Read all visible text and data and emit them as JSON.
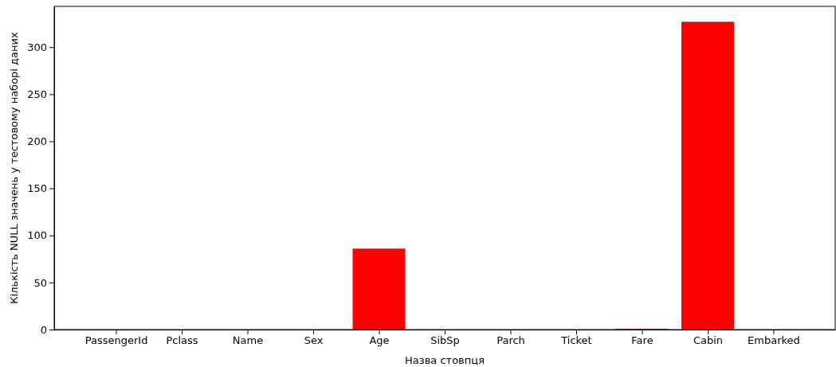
{
  "chart_data": {
    "type": "bar",
    "xlabel": "Назва стовпця",
    "ylabel": "Кількість NULL значень у тестовому наборі даних",
    "categories": [
      "PassengerId",
      "Pclass",
      "Name",
      "Sex",
      "Age",
      "SibSp",
      "Parch",
      "Ticket",
      "Fare",
      "Cabin",
      "Embarked"
    ],
    "values": [
      0,
      0,
      0,
      0,
      86,
      0,
      0,
      0,
      1,
      327,
      0
    ],
    "color": "#ff0000",
    "ylim": [
      0,
      343.35
    ],
    "yticks": [
      0,
      50,
      100,
      150,
      200,
      250,
      300
    ],
    "grid": false
  }
}
